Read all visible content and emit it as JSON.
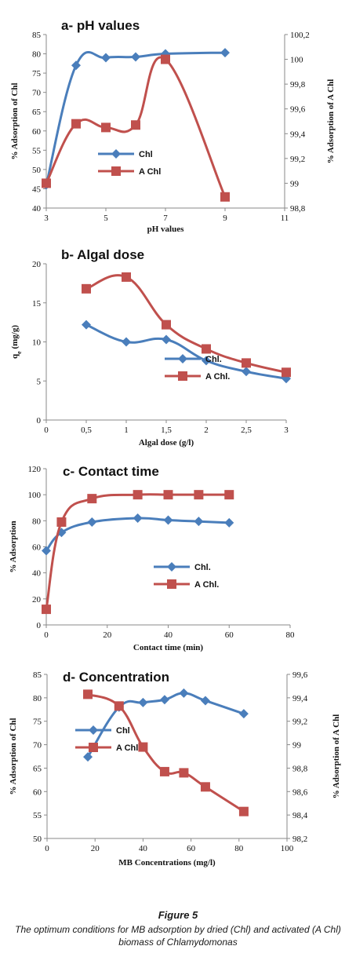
{
  "chart_data": [
    {
      "type": "line",
      "title": "a- pH values",
      "xlabel": "pH values",
      "ylabel": "% Adsorption of  Chl",
      "y2label": "% Adsorption of A Chl",
      "xlim": [
        3,
        11
      ],
      "xticks": [
        3,
        5,
        7,
        9,
        11
      ],
      "xtick_labels": [
        "3",
        "5",
        "7",
        "9",
        "11"
      ],
      "ylim": [
        40,
        85
      ],
      "yticks": [
        40,
        45,
        50,
        55,
        60,
        65,
        70,
        75,
        80,
        85
      ],
      "ytick_labels": [
        "40",
        "45",
        "50",
        "55",
        "60",
        "65",
        "70",
        "75",
        "80",
        "85"
      ],
      "y2lim": [
        98.8,
        100.2
      ],
      "y2ticks": [
        98.8,
        99,
        99.2,
        99.4,
        99.6,
        99.8,
        100,
        100.2
      ],
      "y2tick_labels": [
        "98,8",
        "99",
        "99,2",
        "99,4",
        "99,6",
        "99,8",
        "100",
        "100,2"
      ],
      "legend": "center",
      "series": [
        {
          "name": "Chl",
          "marker": "diamond",
          "color": "#4a7ebb",
          "axis": "left",
          "x": [
            3,
            4,
            5,
            6,
            7,
            9
          ],
          "y": [
            46,
            77,
            79,
            79.2,
            80,
            80.3
          ]
        },
        {
          "name": "A Chl",
          "marker": "square",
          "color": "#c0504d",
          "axis": "right",
          "x": [
            3,
            4,
            5,
            6,
            7,
            9
          ],
          "y": [
            99,
            99.48,
            99.45,
            99.47,
            100,
            98.89
          ]
        }
      ]
    },
    {
      "type": "line",
      "title": "b- Algal dose",
      "xlabel": "Algal dose (g/l)",
      "ylabel": "q",
      "ylabel_sub": "e",
      "ylabel_suffix": " (mg/g)",
      "xlim": [
        0,
        3
      ],
      "xticks": [
        0,
        0.5,
        1,
        1.5,
        2,
        2.5,
        3
      ],
      "xtick_labels": [
        "0",
        "0,5",
        "1",
        "1,5",
        "2",
        "2,5",
        "3"
      ],
      "ylim": [
        0,
        20
      ],
      "yticks": [
        0,
        5,
        10,
        15,
        20
      ],
      "ytick_labels": [
        "0",
        "5",
        "10",
        "15",
        "20"
      ],
      "legend": "right",
      "series": [
        {
          "name": "Chl.",
          "marker": "diamond",
          "color": "#4a7ebb",
          "axis": "left",
          "x": [
            0.5,
            1,
            1.5,
            2,
            2.5,
            3
          ],
          "y": [
            12.2,
            10,
            10.3,
            7.6,
            6.2,
            5.3
          ]
        },
        {
          "name": "A Chl.",
          "marker": "square",
          "color": "#c0504d",
          "axis": "left",
          "x": [
            0.5,
            1,
            1.5,
            2,
            2.5,
            3
          ],
          "y": [
            16.8,
            18.3,
            12.2,
            9.1,
            7.3,
            6.1
          ]
        }
      ]
    },
    {
      "type": "line",
      "title": "c- Contact time",
      "xlabel": "Contact time (min)",
      "ylabel": "% Adsorption",
      "xlim": [
        0,
        80
      ],
      "xticks": [
        0,
        20,
        40,
        60,
        80
      ],
      "xtick_labels": [
        "0",
        "20",
        "40",
        "60",
        "80"
      ],
      "ylim": [
        0,
        120
      ],
      "yticks": [
        0,
        20,
        40,
        60,
        80,
        100,
        120
      ],
      "ytick_labels": [
        "0",
        "20",
        "40",
        "60",
        "80",
        "100",
        "120"
      ],
      "legend": "center",
      "series": [
        {
          "name": "Chl.",
          "marker": "diamond",
          "color": "#4a7ebb",
          "axis": "left",
          "x": [
            0,
            5,
            15,
            30,
            40,
            50,
            60
          ],
          "y": [
            57,
            71,
            79,
            82,
            80.5,
            79.5,
            78.5
          ]
        },
        {
          "name": "A Chl.",
          "marker": "square",
          "color": "#c0504d",
          "axis": "left",
          "x": [
            0,
            5,
            15,
            30,
            40,
            50,
            60
          ],
          "y": [
            12,
            79,
            97,
            100,
            100,
            100,
            100
          ]
        }
      ]
    },
    {
      "type": "line",
      "title": "d- Concentration",
      "xlabel": "MB Concentrations (mg/l)",
      "ylabel": "% Adsorption of  Chl",
      "y2label": "% Adsorption of A Chl",
      "xlim": [
        0,
        100
      ],
      "xticks": [
        0,
        20,
        40,
        60,
        80,
        100
      ],
      "xtick_labels": [
        "0",
        "20",
        "40",
        "60",
        "80",
        "100"
      ],
      "ylim": [
        50,
        85
      ],
      "yticks": [
        50,
        55,
        60,
        65,
        70,
        75,
        80,
        85
      ],
      "ytick_labels": [
        "50",
        "55",
        "60",
        "65",
        "70",
        "75",
        "80",
        "85"
      ],
      "y2lim": [
        98.2,
        99.6
      ],
      "y2ticks": [
        98.2,
        98.4,
        98.6,
        98.8,
        99,
        99.2,
        99.4,
        99.6
      ],
      "y2tick_labels": [
        "98,2",
        "98,4",
        "98,6",
        "98,8",
        "99",
        "99,2",
        "99,4",
        "99,6"
      ],
      "legend": "left",
      "series": [
        {
          "name": "Chl",
          "marker": "diamond",
          "color": "#4a7ebb",
          "axis": "left",
          "x": [
            17,
            30,
            40,
            49,
            57,
            66,
            82
          ],
          "y": [
            67.4,
            78,
            79,
            79.6,
            81,
            79.4,
            76.6
          ]
        },
        {
          "name": "A Chl",
          "marker": "square",
          "color": "#c0504d",
          "axis": "right",
          "x": [
            17,
            30,
            40,
            49,
            57,
            66,
            82
          ],
          "y": [
            99.43,
            99.33,
            98.98,
            98.77,
            98.76,
            98.64,
            98.43
          ]
        }
      ]
    }
  ],
  "figure": {
    "title": "Figure 5",
    "caption_before": "The optimum conditions for MB adsorption by dried (Chl) and activated (A Chl) biomass of ",
    "caption_species": "Chlamydomonas"
  }
}
